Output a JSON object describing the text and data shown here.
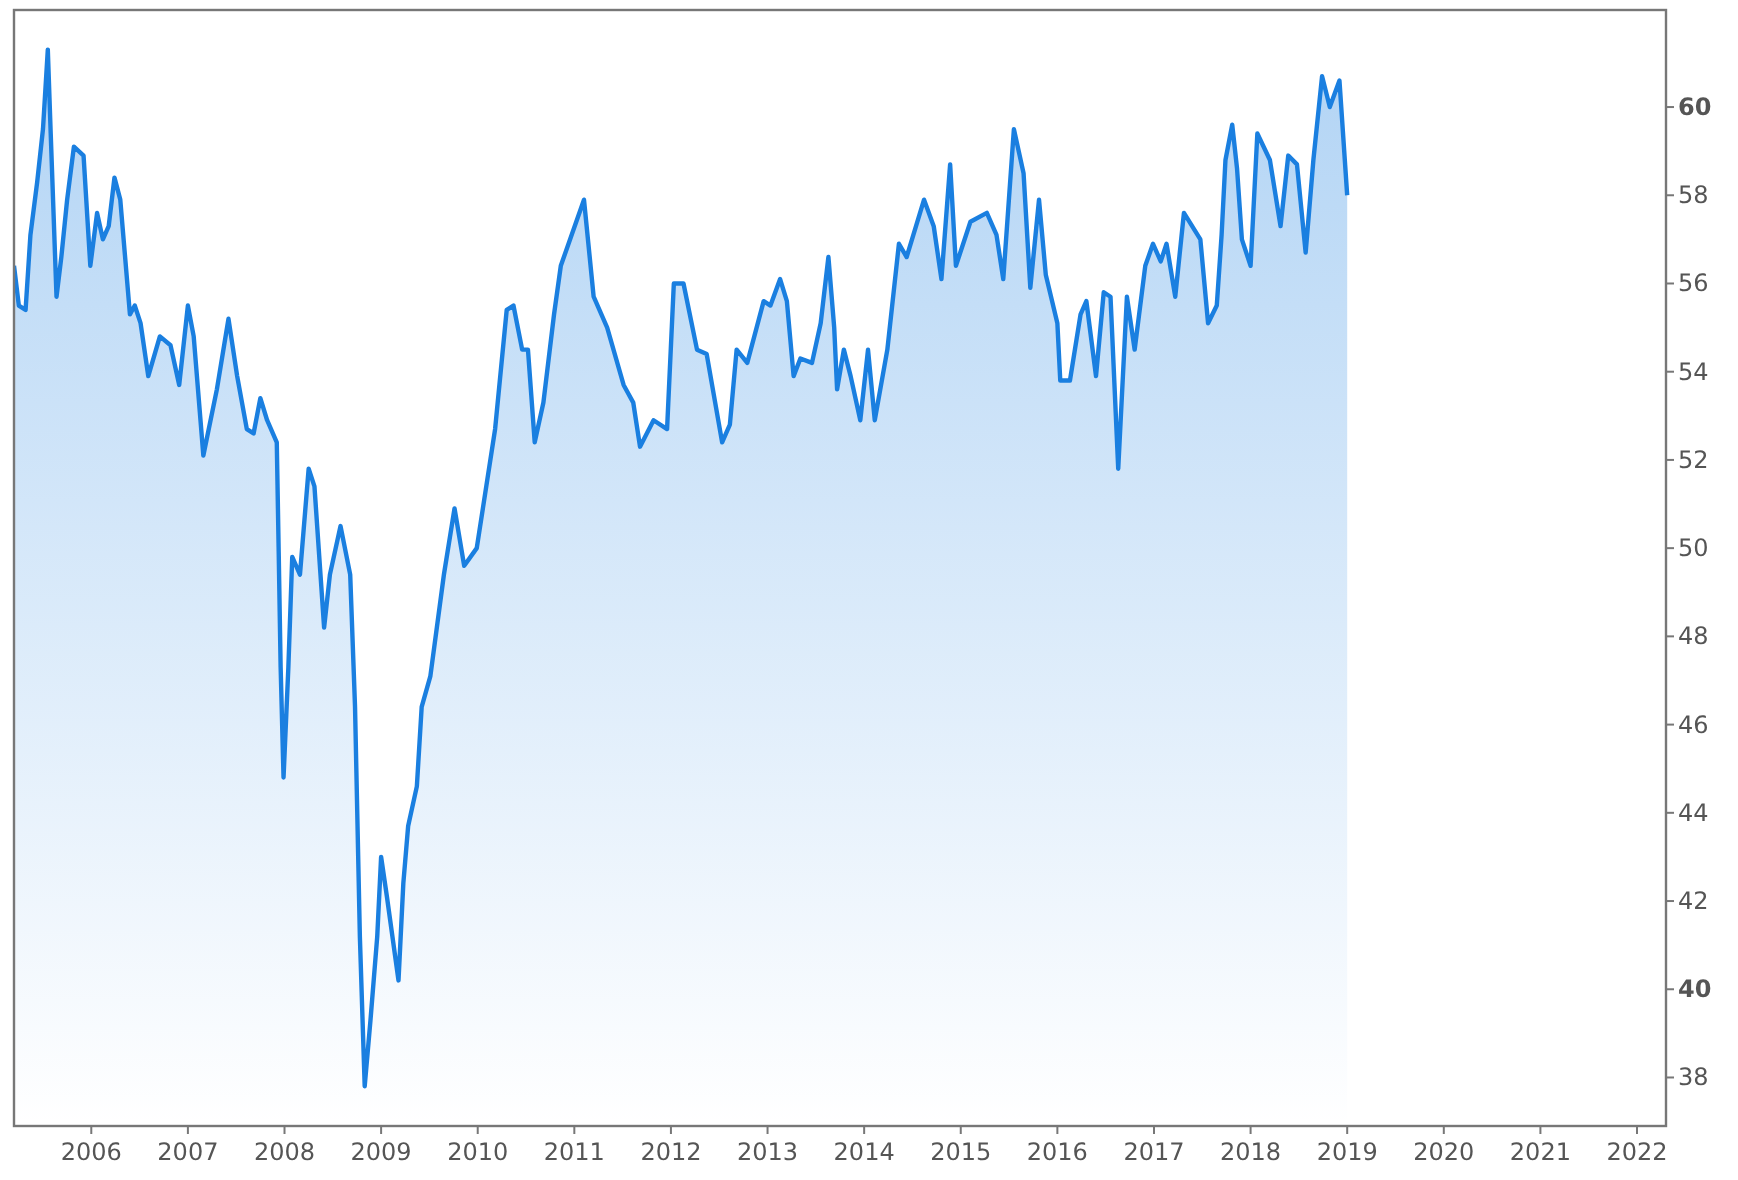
{
  "chart_data": {
    "type": "area",
    "xlim": [
      2005.2,
      2022.3
    ],
    "ylim": [
      36.9,
      62.2
    ],
    "xticks": [
      2006,
      2007,
      2008,
      2009,
      2010,
      2011,
      2012,
      2013,
      2014,
      2015,
      2016,
      2017,
      2018,
      2019,
      2020,
      2021,
      2022
    ],
    "yticks": [
      38,
      40,
      42,
      44,
      46,
      48,
      50,
      52,
      54,
      56,
      58,
      60
    ],
    "grid": false,
    "series": [
      {
        "color": "#1a7fe0",
        "x": [
          2005.2,
          2005.25,
          2005.32,
          2005.37,
          2005.44,
          2005.5,
          2005.55,
          2005.58,
          2005.64,
          2005.69,
          2005.75,
          2005.82,
          2005.92,
          2005.99,
          2006.06,
          2006.12,
          2006.18,
          2006.24,
          2006.3,
          2006.4,
          2006.45,
          2006.51,
          2006.59,
          2006.71,
          2006.82,
          2006.91,
          2007.0,
          2007.06,
          2007.16,
          2007.3,
          2007.42,
          2007.51,
          2007.61,
          2007.68,
          2007.75,
          2007.82,
          2007.92,
          2007.94,
          2007.96,
          2007.99,
          2008.04,
          2008.08,
          2008.16,
          2008.25,
          2008.31,
          2008.41,
          2008.47,
          2008.58,
          2008.68,
          2008.73,
          2008.78,
          2008.83,
          2008.89,
          2008.96,
          2009.0,
          2009.06,
          2009.18,
          2009.23,
          2009.28,
          2009.37,
          2009.42,
          2009.51,
          2009.65,
          2009.76,
          2009.86,
          2009.99,
          2010.18,
          2010.3,
          2010.37,
          2010.46,
          2010.52,
          2010.59,
          2010.68,
          2010.79,
          2010.86,
          2011.1,
          2011.2,
          2011.34,
          2011.51,
          2011.61,
          2011.68,
          2011.82,
          2011.96,
          2012.03,
          2012.13,
          2012.27,
          2012.37,
          2012.53,
          2012.61,
          2012.68,
          2012.79,
          2012.96,
          2013.03,
          2013.13,
          2013.2,
          2013.27,
          2013.34,
          2013.46,
          2013.55,
          2013.63,
          2013.69,
          2013.72,
          2013.79,
          2013.86,
          2013.96,
          2014.04,
          2014.11,
          2014.24,
          2014.36,
          2014.44,
          2014.62,
          2014.72,
          2014.8,
          2014.89,
          2014.95,
          2015.1,
          2015.27,
          2015.37,
          2015.44,
          2015.55,
          2015.65,
          2015.72,
          2015.81,
          2015.88,
          2016.0,
          2016.03,
          2016.13,
          2016.24,
          2016.3,
          2016.4,
          2016.48,
          2016.55,
          2016.63,
          2016.72,
          2016.8,
          2016.91,
          2016.99,
          2017.07,
          2017.13,
          2017.22,
          2017.31,
          2017.48,
          2017.56,
          2017.65,
          2017.7,
          2017.74,
          2017.81,
          2017.86,
          2017.91,
          2018.0,
          2018.07,
          2018.2,
          2018.31,
          2018.39,
          2018.48,
          2018.57,
          2018.65,
          2018.74,
          2018.82,
          2018.92,
          2019.0
        ],
        "values": [
          56.4,
          55.5,
          55.4,
          57.1,
          58.3,
          59.5,
          61.3,
          59.4,
          55.7,
          56.6,
          57.9,
          59.1,
          58.9,
          56.4,
          57.6,
          57.0,
          57.3,
          58.4,
          57.9,
          55.3,
          55.5,
          55.1,
          53.9,
          54.8,
          54.6,
          53.7,
          55.5,
          54.8,
          52.1,
          53.6,
          55.2,
          53.9,
          52.7,
          52.6,
          53.4,
          52.9,
          52.4,
          49.9,
          47.3,
          44.8,
          47.3,
          49.8,
          49.4,
          51.8,
          51.4,
          48.2,
          49.4,
          50.5,
          49.4,
          46.4,
          41.2,
          37.8,
          39.3,
          41.2,
          43.0,
          42.1,
          40.2,
          42.4,
          43.7,
          44.6,
          46.4,
          47.1,
          49.4,
          50.9,
          49.6,
          50.0,
          52.7,
          55.4,
          55.5,
          54.5,
          54.5,
          52.4,
          53.3,
          55.3,
          56.4,
          57.9,
          55.7,
          55.0,
          53.7,
          53.3,
          52.3,
          52.9,
          52.7,
          56.0,
          56.0,
          54.5,
          54.4,
          52.4,
          52.8,
          54.5,
          54.2,
          55.6,
          55.5,
          56.1,
          55.6,
          53.9,
          54.3,
          54.2,
          55.1,
          56.6,
          55.0,
          53.6,
          54.5,
          53.9,
          52.9,
          54.5,
          52.9,
          54.5,
          56.9,
          56.6,
          57.9,
          57.3,
          56.1,
          58.7,
          56.4,
          57.4,
          57.6,
          57.1,
          56.1,
          59.5,
          58.5,
          55.9,
          57.9,
          56.2,
          55.1,
          53.8,
          53.8,
          55.3,
          55.6,
          53.9,
          55.8,
          55.7,
          51.8,
          55.7,
          54.5,
          56.4,
          56.9,
          56.5,
          56.9,
          55.7,
          57.6,
          57.0,
          55.1,
          55.5,
          57.1,
          58.8,
          59.6,
          58.6,
          57.0,
          56.4,
          59.4,
          58.8,
          57.3,
          58.9,
          58.7,
          56.7,
          58.8,
          60.7,
          60.0,
          60.6,
          58.0
        ]
      }
    ]
  }
}
